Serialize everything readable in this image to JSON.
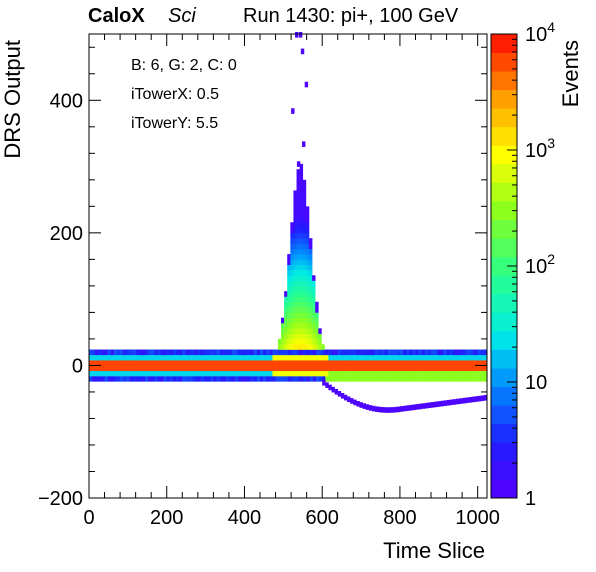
{
  "header": {
    "experiment": "CaloX",
    "detector": "Sci",
    "run": "Run 1430: pi+, 100 GeV"
  },
  "info_lines": [
    "B: 6, G: 2, C: 0",
    "iTowerX: 0.5",
    "iTowerY: 5.5"
  ],
  "chart_data": {
    "type": "heatmap",
    "title": "",
    "xlabel": "Time Slice",
    "ylabel": "DRS Output",
    "zlabel": "Events",
    "xlim": [
      0,
      1024
    ],
    "ylim": [
      -200,
      500
    ],
    "zlim": [
      1,
      10000
    ],
    "z_log": true,
    "x_ticks": [
      "0",
      "200",
      "400",
      "600",
      "800",
      "1000"
    ],
    "y_ticks": [
      "−200",
      "0",
      "200",
      "400"
    ],
    "z_ticks": [
      {
        "base": "1",
        "exp": ""
      },
      {
        "base": "10",
        "exp": ""
      },
      {
        "base": "10",
        "exp": "2"
      },
      {
        "base": "10",
        "exp": "3"
      },
      {
        "base": "10",
        "exp": "4"
      }
    ],
    "grid": false,
    "features": {
      "baseline_y": 0,
      "pulse_center_x": 540,
      "pulse_peak_y": 500,
      "undershoot_min_y": -85
    }
  }
}
